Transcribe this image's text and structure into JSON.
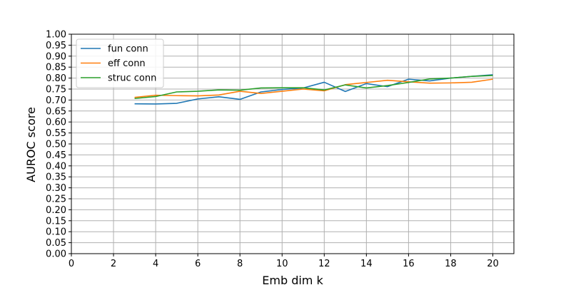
{
  "chart_data": {
    "type": "line",
    "xlabel": "Emb dim k",
    "ylabel": "AUROC score",
    "xlim": [
      0,
      21
    ],
    "ylim": [
      0,
      1
    ],
    "xticks": [
      0,
      2,
      4,
      6,
      8,
      10,
      12,
      14,
      16,
      18,
      20
    ],
    "yticks": [
      0.0,
      0.05,
      0.1,
      0.15,
      0.2,
      0.25,
      0.3,
      0.35,
      0.4,
      0.45,
      0.5,
      0.55,
      0.6,
      0.65,
      0.7,
      0.75,
      0.8,
      0.85,
      0.9,
      0.95,
      1.0
    ],
    "grid": true,
    "legend_position": "top-left",
    "x": [
      3,
      4,
      5,
      6,
      7,
      8,
      9,
      10,
      11,
      12,
      13,
      14,
      15,
      16,
      17,
      18,
      19,
      20
    ],
    "series": [
      {
        "name": "fun conn",
        "color": "#1f77b4",
        "values": [
          0.683,
          0.682,
          0.685,
          0.705,
          0.715,
          0.703,
          0.737,
          0.748,
          0.755,
          0.781,
          0.739,
          0.775,
          0.761,
          0.795,
          0.787,
          0.8,
          0.808,
          0.815
        ]
      },
      {
        "name": "eff conn",
        "color": "#ff7f0e",
        "values": [
          0.712,
          0.722,
          0.72,
          0.719,
          0.723,
          0.74,
          0.73,
          0.74,
          0.75,
          0.742,
          0.77,
          0.78,
          0.79,
          0.783,
          0.777,
          0.778,
          0.781,
          0.795
        ]
      },
      {
        "name": "struc conn",
        "color": "#2ca02c",
        "values": [
          0.707,
          0.716,
          0.737,
          0.74,
          0.746,
          0.745,
          0.755,
          0.756,
          0.756,
          0.746,
          0.769,
          0.755,
          0.766,
          0.78,
          0.796,
          0.8,
          0.808,
          0.812
        ]
      }
    ]
  }
}
